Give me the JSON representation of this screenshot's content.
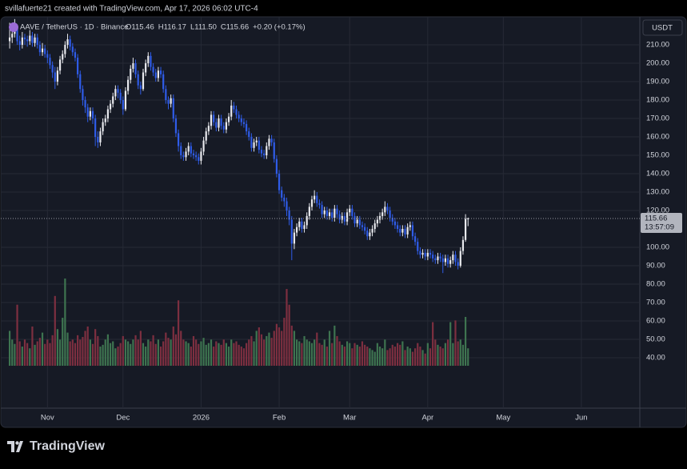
{
  "chart_data": {
    "type": "candlestick",
    "attribution": "svillafuerte21 created with TradingView.com, Apr 17, 2026 06:02 UTC-4",
    "symbol": "AAVE / TetherUS · 1D · Binance",
    "ohlc_legend": [
      "O115.46",
      "H116.17",
      "L111.50",
      "C115.66"
    ],
    "change": "+0.20 (+0.17%)",
    "currency": "USDT",
    "last_price": {
      "value": 115.66,
      "label": "115.66"
    },
    "countdown": "13:57:09",
    "brand": "TradingView",
    "up_color": "#e8e9ee",
    "down_color": "#2f5ce8",
    "volume_up_color": "#3e7450",
    "volume_down_color": "#7d2f40",
    "grid": true,
    "ylim": [
      12.6,
      224.8
    ],
    "yticks": [
      {
        "value": 40,
        "label": "40.00"
      },
      {
        "value": 50,
        "label": "50.00"
      },
      {
        "value": 60,
        "label": "60.00"
      },
      {
        "value": 70,
        "label": "70.00"
      },
      {
        "value": 80,
        "label": "80.00"
      },
      {
        "value": 90,
        "label": "90.00"
      },
      {
        "value": 100,
        "label": "100.00"
      },
      {
        "value": 120,
        "label": "120.00"
      },
      {
        "value": 130,
        "label": "130.00"
      },
      {
        "value": 140,
        "label": "140.00"
      },
      {
        "value": 150,
        "label": "150.00"
      },
      {
        "value": 160,
        "label": "160.00"
      },
      {
        "value": 170,
        "label": "170.00"
      },
      {
        "value": 180,
        "label": "180.00"
      },
      {
        "value": 190,
        "label": "190.00"
      },
      {
        "value": 200,
        "label": "200.00"
      },
      {
        "value": 210,
        "label": "210.00"
      }
    ],
    "xlim": [
      -1.3,
      250.2
    ],
    "xticks": [
      {
        "value": 15,
        "label": "Nov"
      },
      {
        "value": 45,
        "label": "Dec"
      },
      {
        "value": 76,
        "label": "2026"
      },
      {
        "value": 107,
        "label": "Feb"
      },
      {
        "value": 135,
        "label": "Mar"
      },
      {
        "value": 166,
        "label": "Apr"
      },
      {
        "value": 196,
        "label": "May"
      },
      {
        "value": 227,
        "label": "Jun"
      }
    ],
    "volume_ylim": [
      0,
      100
    ],
    "open": [
      212,
      214,
      216,
      219,
      212,
      210,
      214,
      213,
      212,
      215,
      211,
      214,
      210,
      206,
      208,
      205,
      203,
      199,
      195,
      190,
      196,
      202,
      205,
      210,
      213,
      209,
      206,
      203,
      194,
      186,
      180,
      176,
      171,
      174,
      170,
      160,
      157,
      163,
      168,
      170,
      175,
      178,
      182,
      186,
      184,
      180,
      175,
      185,
      191,
      197,
      200,
      194,
      188,
      186,
      195,
      200,
      204,
      198,
      195,
      192,
      196,
      194,
      186,
      180,
      178,
      181,
      170,
      162,
      155,
      150,
      149,
      152,
      155,
      151,
      150,
      149,
      147,
      152,
      158,
      163,
      166,
      172,
      168,
      165,
      170,
      166,
      164,
      168,
      171,
      177,
      175,
      172,
      170,
      168,
      167,
      163,
      160,
      154,
      157,
      158,
      153,
      151,
      150,
      155,
      159,
      157,
      148,
      140,
      131,
      127,
      125,
      120,
      115,
      102,
      108,
      111,
      114,
      110,
      112,
      117,
      122,
      126,
      128,
      124,
      123,
      118,
      120,
      117,
      119,
      116,
      121,
      118,
      115,
      117,
      114,
      119,
      121,
      117,
      113,
      115,
      112,
      111,
      109,
      106,
      108,
      110,
      113,
      115,
      117,
      119,
      122,
      120,
      116,
      114,
      112,
      110,
      108,
      110,
      107,
      111,
      112,
      106,
      103,
      98,
      96,
      97,
      95,
      97,
      96,
      94,
      93,
      95,
      94,
      92,
      94,
      91,
      93,
      96,
      92,
      90,
      98,
      104,
      115.46
    ],
    "high": [
      222,
      219,
      224,
      221,
      215,
      217,
      216,
      215,
      218,
      217,
      216,
      216,
      212,
      211,
      210,
      207,
      205,
      201,
      198,
      198,
      204,
      207,
      212,
      216,
      215,
      211,
      208,
      205,
      196,
      188,
      182,
      178,
      176,
      176,
      172,
      163,
      165,
      170,
      172,
      177,
      180,
      184,
      188,
      188,
      186,
      182,
      187,
      193,
      199,
      203,
      202,
      196,
      190,
      197,
      202,
      206,
      206,
      200,
      197,
      198,
      198,
      196,
      188,
      182,
      183,
      183,
      172,
      164,
      157,
      152,
      154,
      157,
      157,
      153,
      152,
      151,
      154,
      160,
      165,
      168,
      174,
      174,
      170,
      172,
      172,
      168,
      170,
      173,
      180,
      179,
      177,
      174,
      172,
      170,
      169,
      165,
      162,
      159,
      160,
      160,
      155,
      153,
      157,
      161,
      161,
      159,
      150,
      142,
      133,
      129,
      127,
      122,
      117,
      110,
      113,
      116,
      116,
      114,
      119,
      124,
      128,
      131,
      130,
      126,
      125,
      122,
      122,
      121,
      121,
      123,
      123,
      120,
      119,
      119,
      121,
      123,
      123,
      119,
      117,
      117,
      114,
      113,
      111,
      110,
      112,
      115,
      117,
      119,
      121,
      125,
      124,
      122,
      118,
      116,
      114,
      112,
      112,
      112,
      113,
      114,
      114,
      108,
      105,
      100,
      99,
      99,
      99,
      99,
      98,
      96,
      97,
      97,
      96,
      96,
      96,
      95,
      98,
      98,
      94,
      100,
      106,
      118,
      116.17
    ],
    "low": [
      208,
      211,
      214,
      210,
      207,
      208,
      210,
      209,
      210,
      209,
      209,
      208,
      204,
      204,
      203,
      200,
      197,
      192,
      186,
      188,
      194,
      200,
      203,
      208,
      207,
      204,
      201,
      192,
      184,
      177,
      173,
      168,
      169,
      167,
      155,
      154,
      155,
      161,
      166,
      168,
      173,
      176,
      180,
      181,
      178,
      172,
      174,
      183,
      189,
      195,
      192,
      186,
      183,
      185,
      193,
      198,
      196,
      193,
      190,
      190,
      192,
      184,
      178,
      175,
      176,
      168,
      160,
      152,
      148,
      147,
      147,
      150,
      149,
      148,
      147,
      145,
      145,
      150,
      156,
      161,
      164,
      166,
      163,
      163,
      164,
      162,
      162,
      166,
      169,
      173,
      170,
      168,
      166,
      165,
      161,
      158,
      152,
      152,
      155,
      151,
      149,
      148,
      148,
      153,
      155,
      146,
      138,
      129,
      125,
      122,
      117,
      112,
      93,
      99,
      106,
      109,
      108,
      108,
      110,
      115,
      120,
      124,
      122,
      121,
      116,
      116,
      115,
      115,
      114,
      114,
      116,
      113,
      113,
      112,
      112,
      117,
      115,
      111,
      111,
      110,
      109,
      107,
      104,
      104,
      106,
      108,
      111,
      113,
      115,
      117,
      118,
      114,
      112,
      110,
      108,
      106,
      106,
      105,
      105,
      109,
      104,
      101,
      96,
      94,
      94,
      93,
      93,
      94,
      92,
      91,
      91,
      92,
      86,
      90,
      89,
      89,
      91,
      90,
      88,
      89,
      96,
      103,
      111.5
    ],
    "close": [
      214,
      216,
      219,
      212,
      210,
      214,
      213,
      212,
      215,
      211,
      214,
      210,
      206,
      208,
      205,
      203,
      199,
      195,
      190,
      196,
      202,
      205,
      210,
      213,
      209,
      206,
      203,
      194,
      186,
      180,
      176,
      171,
      174,
      170,
      160,
      157,
      163,
      168,
      170,
      175,
      178,
      182,
      186,
      184,
      180,
      175,
      185,
      191,
      197,
      200,
      194,
      188,
      186,
      195,
      200,
      204,
      198,
      195,
      192,
      196,
      194,
      186,
      180,
      178,
      181,
      170,
      162,
      155,
      150,
      149,
      152,
      155,
      151,
      150,
      149,
      147,
      152,
      158,
      163,
      166,
      172,
      168,
      165,
      170,
      166,
      164,
      168,
      171,
      177,
      175,
      172,
      170,
      168,
      167,
      163,
      160,
      154,
      157,
      158,
      153,
      151,
      150,
      155,
      159,
      157,
      148,
      140,
      131,
      127,
      125,
      120,
      115,
      102,
      108,
      111,
      114,
      110,
      112,
      117,
      122,
      126,
      128,
      124,
      123,
      118,
      120,
      117,
      119,
      116,
      121,
      118,
      115,
      117,
      114,
      119,
      121,
      117,
      113,
      115,
      112,
      111,
      109,
      106,
      108,
      110,
      113,
      115,
      117,
      119,
      122,
      120,
      116,
      114,
      112,
      110,
      108,
      110,
      107,
      111,
      112,
      106,
      103,
      98,
      96,
      97,
      95,
      97,
      96,
      94,
      93,
      95,
      94,
      92,
      94,
      91,
      93,
      96,
      92,
      90,
      98,
      104,
      115.46,
      115.66
    ],
    "volume": [
      40,
      30,
      25,
      70,
      28,
      22,
      30,
      26,
      20,
      45,
      24,
      28,
      32,
      38,
      25,
      30,
      26,
      35,
      80,
      42,
      30,
      55,
      100,
      38,
      28,
      30,
      26,
      35,
      30,
      33,
      40,
      45,
      30,
      25,
      42,
      34,
      22,
      24,
      30,
      36,
      26,
      28,
      20,
      22,
      26,
      34,
      30,
      28,
      25,
      30,
      35,
      30,
      40,
      26,
      22,
      30,
      28,
      35,
      25,
      30,
      22,
      28,
      38,
      32,
      30,
      45,
      36,
      75,
      40,
      30,
      28,
      26,
      22,
      34,
      30,
      25,
      28,
      32,
      24,
      26,
      30,
      22,
      28,
      26,
      24,
      30,
      26,
      22,
      30,
      26,
      28,
      24,
      22,
      20,
      26,
      30,
      34,
      28,
      40,
      44,
      36,
      30,
      34,
      38,
      32,
      40,
      48,
      44,
      40,
      55,
      88,
      70,
      46,
      40,
      30,
      28,
      26,
      34,
      30,
      28,
      26,
      30,
      38,
      26,
      24,
      30,
      22,
      40,
      26,
      46,
      34,
      28,
      24,
      22,
      28,
      26,
      20,
      26,
      24,
      22,
      28,
      24,
      22,
      20,
      18,
      16,
      26,
      22,
      20,
      30,
      18,
      20,
      24,
      22,
      26,
      24,
      28,
      18,
      22,
      20,
      16,
      20,
      26,
      22,
      18,
      14,
      26,
      20,
      50,
      30,
      24,
      22,
      20,
      26,
      30,
      50,
      26,
      52,
      28,
      30,
      24,
      56,
      20
    ]
  }
}
